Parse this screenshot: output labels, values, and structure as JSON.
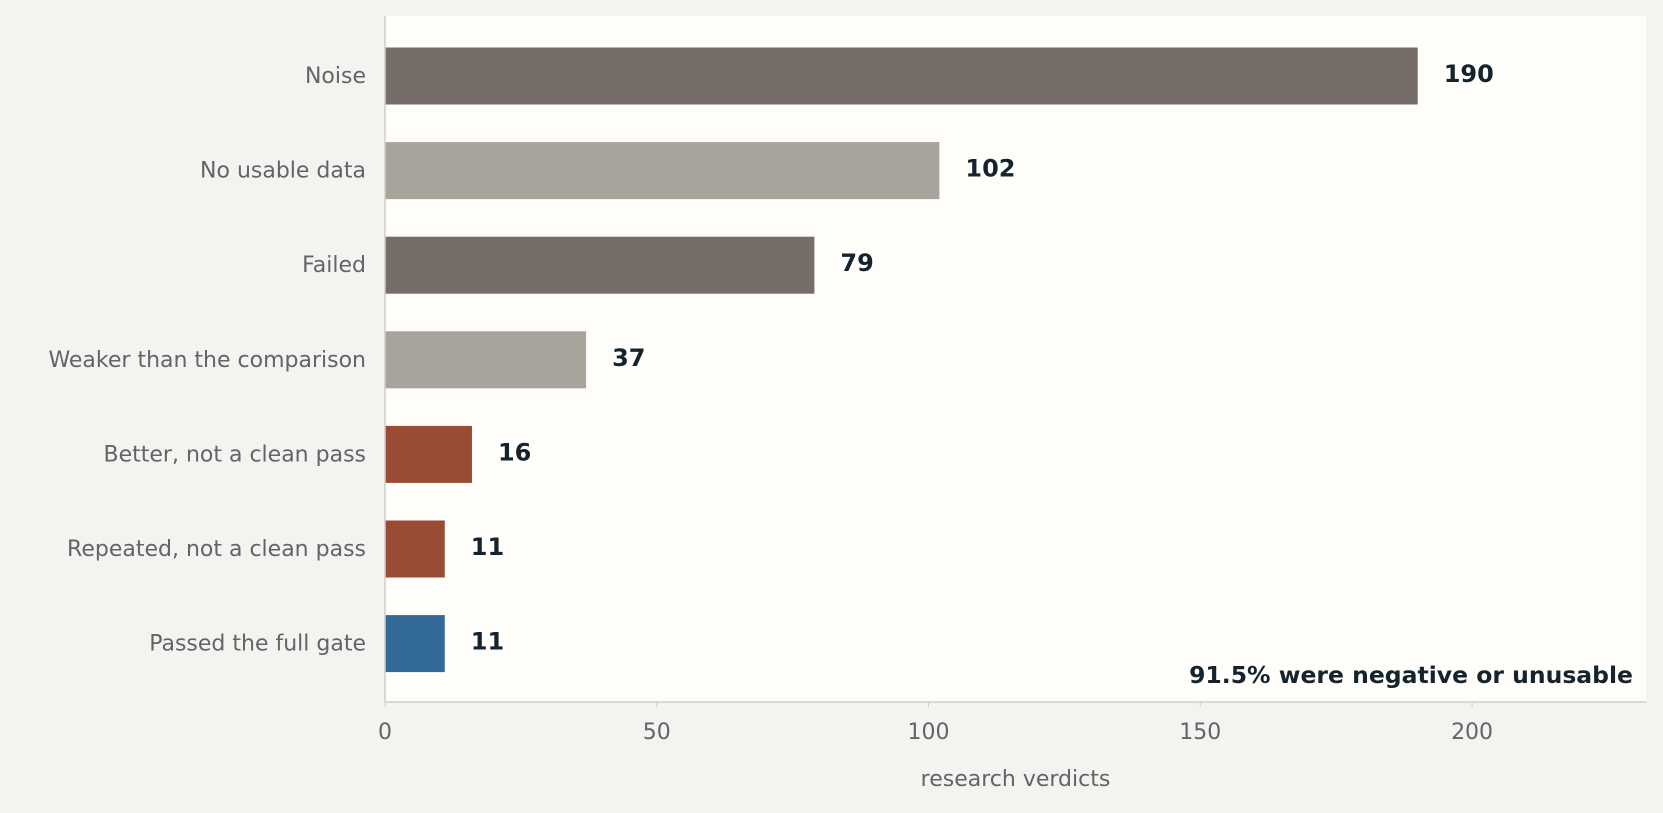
{
  "chart_data": {
    "type": "bar",
    "orientation": "horizontal",
    "categories": [
      "Noise",
      "No usable data",
      "Failed",
      "Weaker than the comparison",
      "Better, not a clean pass",
      "Repeated, not a clean pass",
      "Passed the full gate"
    ],
    "values": [
      190,
      102,
      79,
      37,
      16,
      11,
      11
    ],
    "bar_colors": [
      "#766d68",
      "#a8a39b",
      "#766d68",
      "#a8a39b",
      "#994c33",
      "#994c33",
      "#336a97"
    ],
    "xlabel": "research verdicts",
    "ylabel": "",
    "title": "",
    "xlim": [
      0,
      232
    ],
    "xticks": [
      0,
      50,
      100,
      150,
      200
    ],
    "grid": false,
    "annotation": "91.5% were negative or unusable",
    "colors": {
      "page_background": "#f4f3ef",
      "plot_background": "#fffdfa",
      "axis": "#d0cec9",
      "value_text": "#14232d",
      "label_text": "#5e6669"
    }
  }
}
